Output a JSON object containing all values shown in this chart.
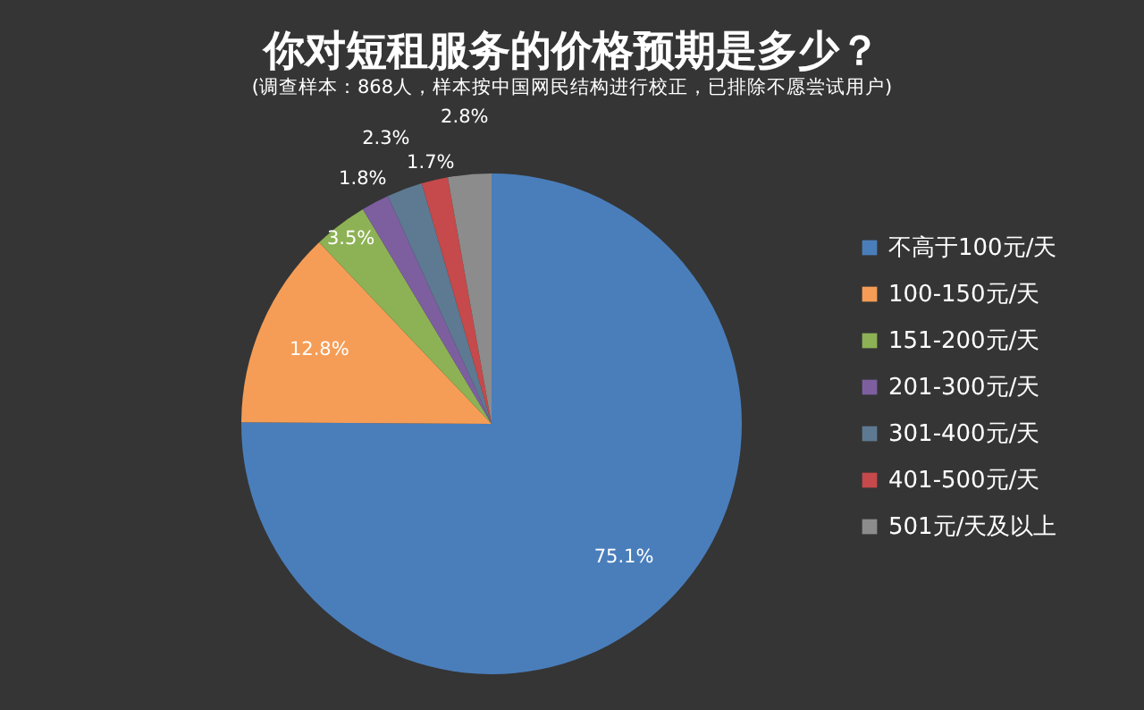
{
  "chart_data": {
    "type": "pie",
    "title": "你对短租服务的价格预期是多少？",
    "subtitle": "(调查样本：868人，样本按中国网民结构进行校正，已排除不愿尝试用户)",
    "categories": [
      "不高于100元/天",
      "100-150元/天",
      "151-200元/天",
      "201-300元/天",
      "301-400元/天",
      "401-500元/天",
      "501元/天及以上"
    ],
    "values": [
      75.1,
      12.8,
      3.5,
      1.8,
      2.3,
      1.7,
      2.8
    ],
    "value_labels": [
      "75.1%",
      "12.8%",
      "3.5%",
      "1.8%",
      "2.3%",
      "1.7%",
      "2.8%"
    ],
    "colors": [
      "#4a7ebb",
      "#f59d56",
      "#8db255",
      "#7d5fa0",
      "#5d7a92",
      "#c6494b",
      "#8c8c8c"
    ],
    "legend": "right"
  }
}
